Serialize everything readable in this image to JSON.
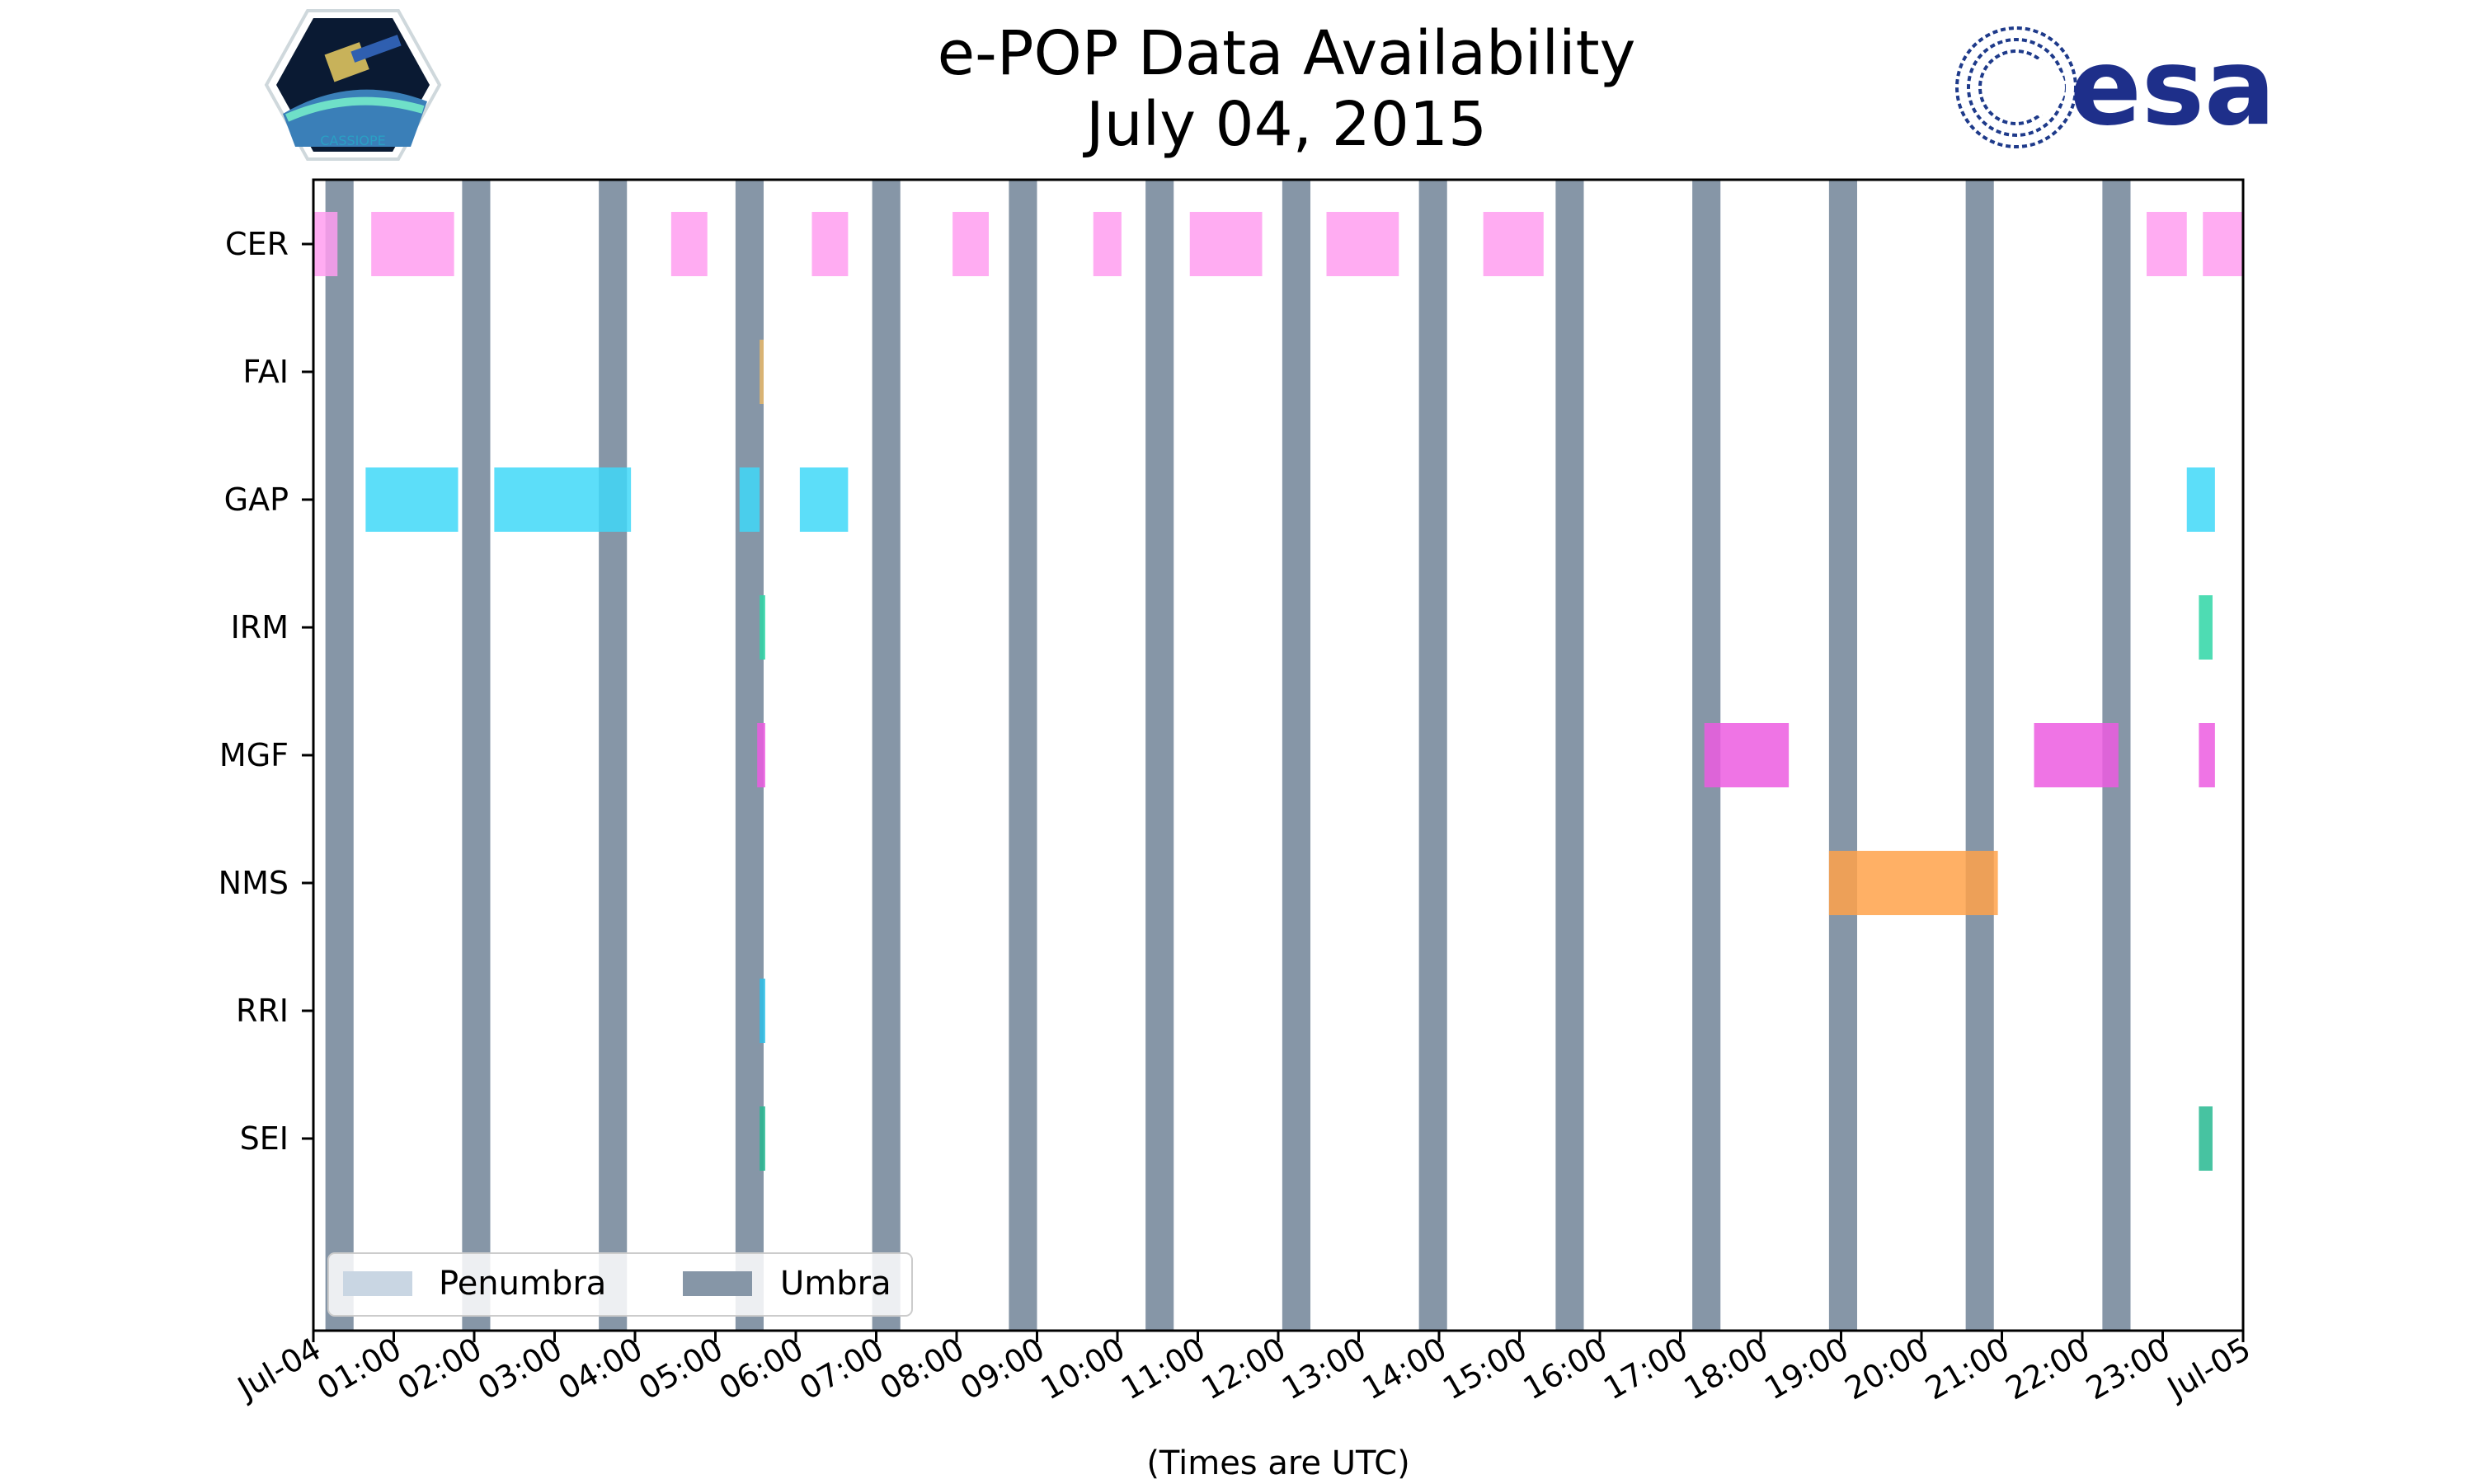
{
  "header": {
    "title_line1": "e-POP Data Availability",
    "title_line2": "July 04, 2015",
    "logo_left_text": "CASSIOPE",
    "logo_right_text": "esa"
  },
  "colors": {
    "umbra": "#8696a7",
    "penumbra": "#c9d6e3",
    "CER": "#ff9ef0",
    "FAI": "#e8b86a",
    "GAP": "#3fd8f8",
    "IRM": "#2fd6a6",
    "MGF": "#ec5ce0",
    "NMS": "#ffa24a",
    "RRI": "#2ec0e8",
    "SEI": "#27b890"
  },
  "chart_data": {
    "type": "timeline",
    "title": "e-POP Data Availability July 04, 2015",
    "xlabel": "(Times are UTC)",
    "ylabel": "",
    "xlim": [
      0,
      24
    ],
    "x_ticks": [
      "Jul-04",
      "01:00",
      "02:00",
      "03:00",
      "04:00",
      "05:00",
      "06:00",
      "07:00",
      "08:00",
      "09:00",
      "10:00",
      "11:00",
      "12:00",
      "13:00",
      "14:00",
      "15:00",
      "16:00",
      "17:00",
      "18:00",
      "19:00",
      "20:00",
      "21:00",
      "22:00",
      "23:00",
      "Jul-05"
    ],
    "instruments": [
      "CER",
      "FAI",
      "GAP",
      "IRM",
      "MGF",
      "NMS",
      "RRI",
      "SEI"
    ],
    "umbra_hours": [
      [
        0.15,
        0.5
      ],
      [
        1.85,
        2.2
      ],
      [
        3.55,
        3.9
      ],
      [
        5.25,
        5.6
      ],
      [
        6.95,
        7.3
      ],
      [
        8.65,
        9.0
      ],
      [
        10.35,
        10.7
      ],
      [
        12.05,
        12.4
      ],
      [
        13.75,
        14.1
      ],
      [
        15.45,
        15.8
      ],
      [
        17.15,
        17.5
      ],
      [
        18.85,
        19.2
      ],
      [
        20.55,
        20.9
      ],
      [
        22.25,
        22.6
      ]
    ],
    "penumbra_hours": [],
    "intervals": {
      "CER": [
        [
          0.0,
          0.3
        ],
        [
          0.72,
          1.75
        ],
        [
          4.45,
          4.9
        ],
        [
          6.2,
          6.65
        ],
        [
          7.95,
          8.4
        ],
        [
          9.7,
          10.05
        ],
        [
          10.9,
          11.8
        ],
        [
          12.6,
          13.5
        ],
        [
          14.55,
          15.3
        ],
        [
          22.8,
          23.3
        ],
        [
          23.5,
          24.0
        ]
      ],
      "FAI": [
        [
          5.55,
          5.6
        ]
      ],
      "GAP": [
        [
          0.65,
          1.8
        ],
        [
          2.25,
          3.95
        ],
        [
          5.3,
          5.55
        ],
        [
          6.05,
          6.65
        ],
        [
          23.3,
          23.65
        ]
      ],
      "IRM": [
        [
          5.55,
          5.62
        ],
        [
          23.45,
          23.62
        ]
      ],
      "MGF": [
        [
          5.52,
          5.62
        ],
        [
          17.3,
          18.35
        ],
        [
          21.4,
          22.45
        ],
        [
          23.45,
          23.65
        ]
      ],
      "NMS": [
        [
          18.85,
          20.95
        ]
      ],
      "RRI": [
        [
          5.55,
          5.62
        ]
      ],
      "SEI": [
        [
          5.55,
          5.62
        ],
        [
          23.45,
          23.62
        ]
      ]
    },
    "legend": [
      {
        "label": "Penumbra",
        "color_key": "penumbra"
      },
      {
        "label": "Umbra",
        "color_key": "umbra"
      }
    ],
    "legend_position": "lower-left"
  }
}
